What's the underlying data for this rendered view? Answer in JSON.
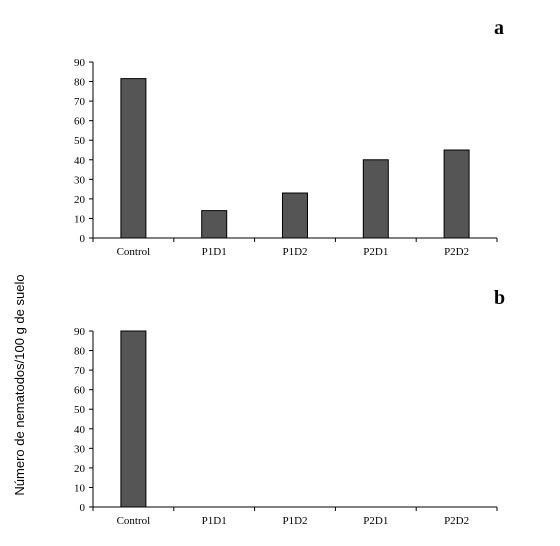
{
  "ylabel": "Número de nematodos/100 g de suelo",
  "chart_data": [
    {
      "type": "bar",
      "panel_label": "a",
      "categories": [
        "Control",
        "P1D1",
        "P1D2",
        "P2D1",
        "P2D2"
      ],
      "values": [
        81.5,
        14,
        23,
        40,
        45
      ],
      "ylim": [
        0,
        90
      ],
      "yticks": [
        0,
        10,
        20,
        30,
        40,
        50,
        60,
        70,
        80,
        90
      ],
      "bar_color": "#555555",
      "grid": false
    },
    {
      "type": "bar",
      "panel_label": "b",
      "categories": [
        "Control",
        "P1D1",
        "P1D2",
        "P2D1",
        "P2D2"
      ],
      "values": [
        90,
        0,
        0,
        0,
        0
      ],
      "ylim": [
        0,
        90
      ],
      "yticks": [
        0,
        10,
        20,
        30,
        40,
        50,
        60,
        70,
        80,
        90
      ],
      "bar_color": "#555555",
      "grid": false
    }
  ]
}
